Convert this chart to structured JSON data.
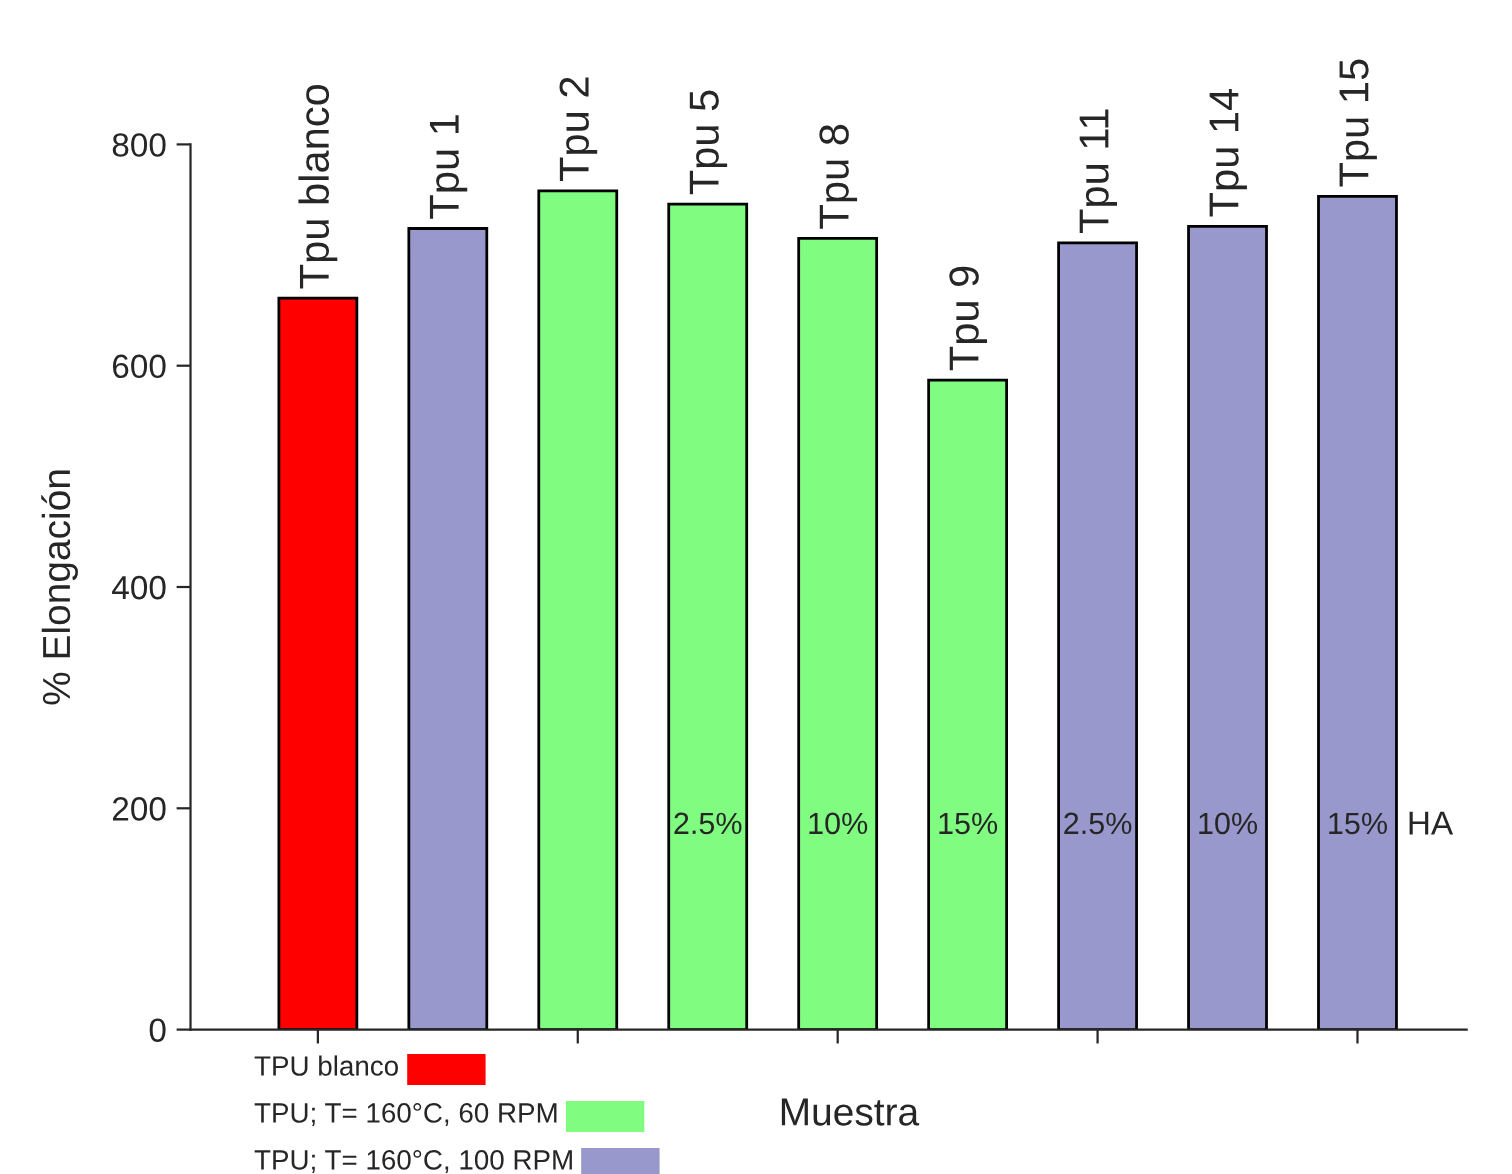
{
  "chart_data": {
    "type": "bar",
    "ylabel": "% Elongación",
    "xlabel": "Muestra",
    "categories": [
      "Tpu blanco",
      "Tpu 1",
      "Tpu 2",
      "Tpu 5",
      "Tpu 8",
      "Tpu 9",
      "Tpu 11",
      "Tpu 14",
      "Tpu 15"
    ],
    "series": [
      {
        "name": "TPU blanco",
        "color": "#ff0000",
        "values": [
          661,
          null,
          null,
          null,
          null,
          null,
          null,
          null,
          null
        ]
      },
      {
        "name": "TPU; T= 160°C, 60 RPM",
        "color": "#80fc80",
        "values": [
          null,
          null,
          758,
          746,
          715,
          587,
          null,
          null,
          null
        ]
      },
      {
        "name": "TPU; T= 160°C, 100 RPM",
        "color": "#9898cc",
        "values": [
          null,
          724,
          null,
          null,
          null,
          null,
          711,
          726,
          753
        ]
      }
    ],
    "ylim": [
      0,
      800
    ],
    "yticks": [
      0,
      200,
      400,
      600,
      800
    ],
    "grid": false,
    "legend": "bottom left",
    "annotations": [
      "2.5%",
      "10%",
      "15%",
      "2.5%",
      "10%",
      "15%",
      "HA"
    ]
  }
}
